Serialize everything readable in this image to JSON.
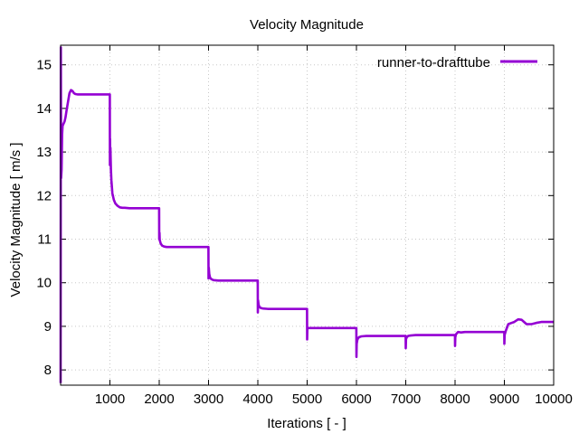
{
  "chart_data": {
    "type": "line",
    "title": "Velocity Magnitude",
    "xlabel": "Iterations [ - ]",
    "ylabel": "Velocity Magnitude [ m/s ]",
    "xlim": [
      0,
      10000
    ],
    "ylim": [
      7.65,
      15.45
    ],
    "xticks": [
      1000,
      2000,
      3000,
      4000,
      5000,
      6000,
      7000,
      8000,
      9000,
      10000
    ],
    "xtick_labels": [
      "1000",
      "2000",
      "3000",
      "4000",
      "5000",
      "6000",
      "7000",
      "8000",
      "9000",
      "10000"
    ],
    "yticks": [
      8,
      9,
      10,
      11,
      12,
      13,
      14,
      15
    ],
    "ytick_labels": [
      "8",
      "9",
      "10",
      "11",
      "12",
      "13",
      "14",
      "15"
    ],
    "grid": true,
    "legend_position": "top-right",
    "series": [
      {
        "name": "runner-to-drafttube",
        "color": "#9400d3",
        "x": [
          0,
          5,
          10,
          20,
          30,
          40,
          60,
          80,
          100,
          120,
          150,
          180,
          210,
          240,
          270,
          300,
          350,
          400,
          500,
          700,
          900,
          998,
          1000,
          1003,
          1006,
          1010,
          1020,
          1030,
          1040,
          1050,
          1080,
          1110,
          1150,
          1200,
          1250,
          1300,
          1400,
          1600,
          1800,
          1998,
          2000,
          2005,
          2010,
          2030,
          2060,
          2100,
          2150,
          2250,
          2400,
          2700,
          2998,
          3000,
          3005,
          3015,
          3030,
          3060,
          3100,
          3200,
          3400,
          3700,
          3998,
          4000,
          4005,
          4015,
          4030,
          4060,
          4100,
          4200,
          4500,
          4998,
          5000,
          5005,
          5020,
          5050,
          5100,
          5400,
          5998,
          6000,
          6005,
          6020,
          6050,
          6100,
          6200,
          6400,
          6700,
          6998,
          7000,
          7005,
          7020,
          7050,
          7100,
          7200,
          7500,
          7998,
          8000,
          8005,
          8020,
          8060,
          8120,
          8200,
          8400,
          8700,
          8998,
          9000,
          9005,
          9030,
          9080,
          9150,
          9200,
          9280,
          9350,
          9400,
          9450,
          9550,
          9650,
          9750,
          9850,
          9950,
          10000
        ],
        "values": [
          7.7,
          15.4,
          12.4,
          12.6,
          13.4,
          13.6,
          13.65,
          13.7,
          13.8,
          13.95,
          14.15,
          14.35,
          14.42,
          14.4,
          14.35,
          14.33,
          14.32,
          14.32,
          14.32,
          14.32,
          14.32,
          14.32,
          12.7,
          13.3,
          12.75,
          13.1,
          12.6,
          12.35,
          12.2,
          12.05,
          11.9,
          11.82,
          11.77,
          11.73,
          11.72,
          11.72,
          11.71,
          11.71,
          11.71,
          11.71,
          11.0,
          11.15,
          10.98,
          10.9,
          10.85,
          10.83,
          10.82,
          10.82,
          10.82,
          10.82,
          10.82,
          10.1,
          10.35,
          10.2,
          10.12,
          10.08,
          10.06,
          10.05,
          10.05,
          10.05,
          10.05,
          9.32,
          9.6,
          9.5,
          9.45,
          9.42,
          9.41,
          9.4,
          9.4,
          9.4,
          8.7,
          8.97,
          8.96,
          8.96,
          8.96,
          8.96,
          8.96,
          8.3,
          8.6,
          8.7,
          8.75,
          8.77,
          8.78,
          8.78,
          8.78,
          8.78,
          8.5,
          8.7,
          8.75,
          8.78,
          8.79,
          8.8,
          8.8,
          8.8,
          8.55,
          8.75,
          8.82,
          8.87,
          8.86,
          8.87,
          8.87,
          8.87,
          8.87,
          8.6,
          8.8,
          8.9,
          9.05,
          9.08,
          9.1,
          9.16,
          9.15,
          9.1,
          9.05,
          9.05,
          9.08,
          9.1,
          9.1,
          9.1,
          9.1
        ]
      }
    ]
  }
}
